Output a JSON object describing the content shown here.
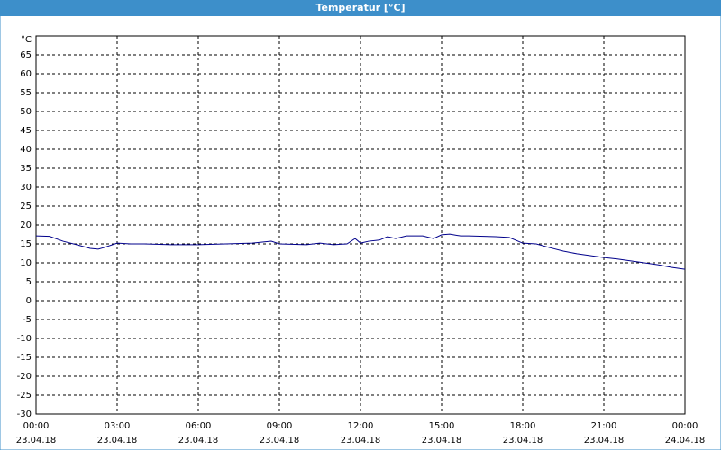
{
  "chart_data": {
    "type": "line",
    "title": "Temperatur [°C]",
    "y_unit": "°C",
    "xlim": [
      0,
      24
    ],
    "ylim": [
      -30,
      70
    ],
    "xticks": [
      {
        "value": 0,
        "label": "00:00"
      },
      {
        "value": 3,
        "label": "03:00"
      },
      {
        "value": 6,
        "label": "06:00"
      },
      {
        "value": 9,
        "label": "09:00"
      },
      {
        "value": 12,
        "label": "12:00"
      },
      {
        "value": 15,
        "label": "15:00"
      },
      {
        "value": 18,
        "label": "18:00"
      },
      {
        "value": 21,
        "label": "21:00"
      },
      {
        "value": 24,
        "label": "00:00"
      }
    ],
    "xtick_dates": [
      "23.04.18",
      "23.04.18",
      "23.04.18",
      "23.04.18",
      "23.04.18",
      "23.04.18",
      "23.04.18",
      "23.04.18",
      "24.04.18"
    ],
    "yticks": [
      -30,
      -25,
      -20,
      -15,
      -10,
      -5,
      0,
      5,
      10,
      15,
      20,
      25,
      30,
      35,
      40,
      45,
      50,
      55,
      60,
      65
    ],
    "grid": true,
    "series": [
      {
        "color": "#00008b",
        "x": [
          0,
          0.5,
          1,
          1.5,
          2,
          2.3,
          2.5,
          3,
          3.5,
          4,
          5,
          6,
          7,
          8,
          8.7,
          9,
          10,
          10.5,
          11,
          11.5,
          11.8,
          12,
          12.3,
          12.7,
          13,
          13.3,
          13.7,
          14,
          14.3,
          14.7,
          15,
          15.3,
          15.7,
          16,
          17,
          17.5,
          18,
          18.5,
          19,
          19.5,
          20,
          20.5,
          21,
          21.5,
          22,
          22.5,
          23,
          23.5,
          24
        ],
        "values": [
          17.1,
          17,
          15.7,
          14.8,
          13.8,
          13.6,
          14,
          15.2,
          15,
          15,
          14.8,
          14.8,
          15,
          15.2,
          15.7,
          15,
          14.8,
          15.2,
          14.8,
          15,
          16.4,
          15.2,
          15.7,
          16,
          16.9,
          16.4,
          17.1,
          17.1,
          17.1,
          16.4,
          17.4,
          17.6,
          17.1,
          17.1,
          16.9,
          16.7,
          15.2,
          15,
          14,
          13.1,
          12.4,
          11.9,
          11.4,
          11,
          10.5,
          10,
          9.5,
          8.8,
          8.3
        ]
      }
    ]
  }
}
